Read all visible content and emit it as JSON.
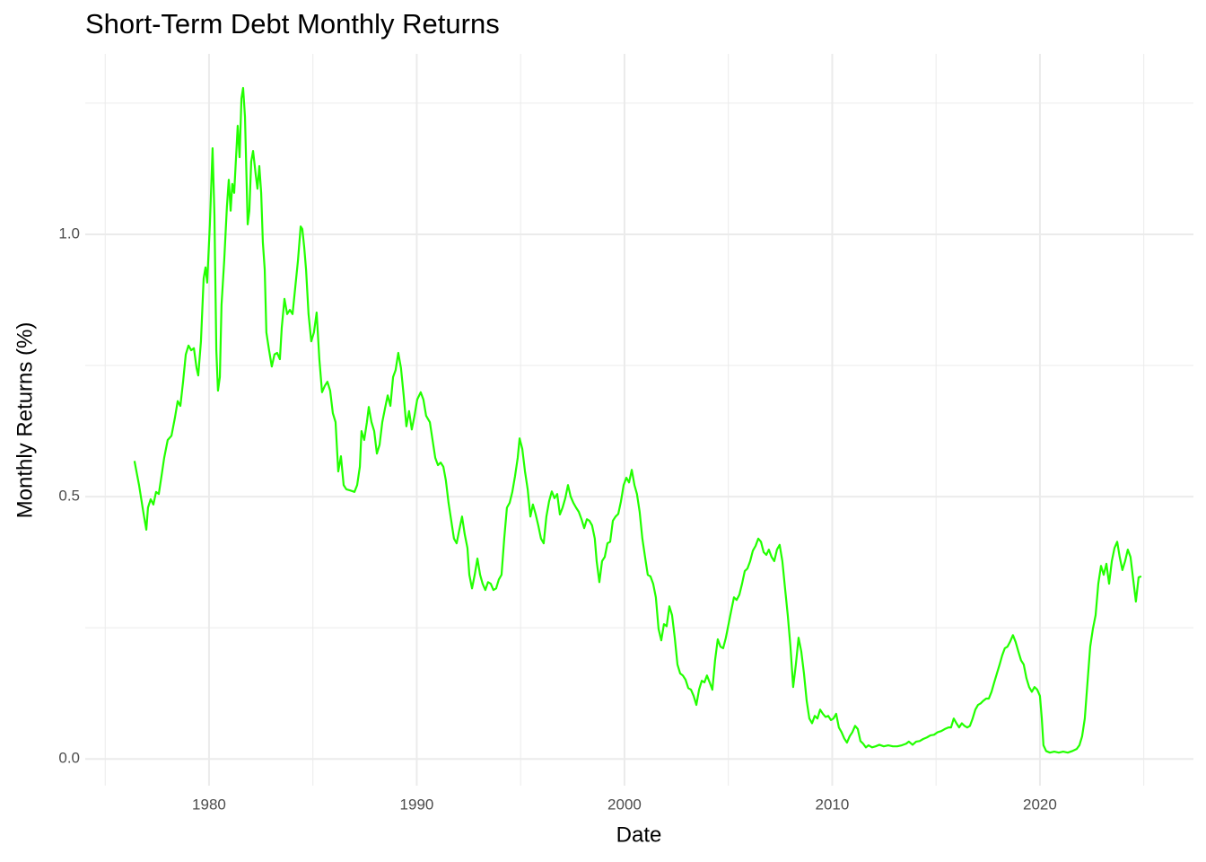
{
  "chart_data": {
    "type": "line",
    "title": "Short-Term Debt Monthly Returns",
    "xlabel": "Date",
    "ylabel": "Monthly Returns (%)",
    "color": "#22ff00",
    "grid": true,
    "xlim": [
      1974.04,
      2027.39
    ],
    "ylim": [
      -0.051,
      1.344
    ],
    "xticks": [
      1980,
      1990,
      2000,
      2010,
      2020
    ],
    "yticks": [
      {
        "value": 0,
        "label": "0.0"
      },
      0.5,
      {
        "value": 1,
        "label": "1.0"
      }
    ],
    "xminor": [
      1975,
      1985,
      1995,
      2005,
      2015,
      2025
    ],
    "yminor": [
      0.25,
      0.75,
      1.25
    ],
    "x": [
      1976.41,
      1976.63,
      1976.85,
      1976.98,
      1977.06,
      1977.19,
      1977.32,
      1977.45,
      1977.58,
      1977.71,
      1977.84,
      1978.01,
      1978.19,
      1978.36,
      1978.49,
      1978.62,
      1978.75,
      1978.88,
      1979.01,
      1979.14,
      1979.27,
      1979.4,
      1979.48,
      1979.61,
      1979.74,
      1979.83,
      1979.91,
      1980.04,
      1980.17,
      1980.26,
      1980.35,
      1980.43,
      1980.52,
      1980.6,
      1980.73,
      1980.86,
      1980.95,
      1981.04,
      1981.12,
      1981.21,
      1981.3,
      1981.38,
      1981.47,
      1981.56,
      1981.64,
      1981.73,
      1981.86,
      1981.94,
      1982.03,
      1982.12,
      1982.25,
      1982.33,
      1982.42,
      1982.51,
      1982.59,
      1982.68,
      1982.76,
      1982.89,
      1983.02,
      1983.15,
      1983.28,
      1983.41,
      1983.5,
      1983.63,
      1983.76,
      1983.89,
      1984.02,
      1984.15,
      1984.28,
      1984.41,
      1984.49,
      1984.58,
      1984.67,
      1984.79,
      1984.92,
      1985.05,
      1985.18,
      1985.31,
      1985.44,
      1985.57,
      1985.7,
      1985.83,
      1985.96,
      1986.09,
      1986.22,
      1986.35,
      1986.48,
      1986.61,
      1986.78,
      1987.0,
      1987.13,
      1987.26,
      1987.34,
      1987.47,
      1987.6,
      1987.69,
      1987.82,
      1987.95,
      1988.08,
      1988.21,
      1988.34,
      1988.47,
      1988.6,
      1988.73,
      1988.86,
      1988.98,
      1989.11,
      1989.24,
      1989.37,
      1989.5,
      1989.63,
      1989.76,
      1989.89,
      1990.02,
      1990.19,
      1990.32,
      1990.45,
      1990.63,
      1990.76,
      1990.89,
      1991.02,
      1991.15,
      1991.28,
      1991.4,
      1991.53,
      1991.66,
      1991.79,
      1991.92,
      1992.05,
      1992.18,
      1992.31,
      1992.44,
      1992.53,
      1992.66,
      1992.79,
      1992.92,
      1993.05,
      1993.17,
      1993.3,
      1993.43,
      1993.56,
      1993.69,
      1993.82,
      1993.95,
      1994.08,
      1994.21,
      1994.34,
      1994.47,
      1994.6,
      1994.73,
      1994.86,
      1994.95,
      1995.08,
      1995.21,
      1995.34,
      1995.47,
      1995.59,
      1995.72,
      1995.85,
      1995.98,
      1996.11,
      1996.24,
      1996.37,
      1996.5,
      1996.63,
      1996.76,
      1996.89,
      1997.02,
      1997.15,
      1997.28,
      1997.41,
      1997.54,
      1997.67,
      1997.8,
      1997.93,
      1998.06,
      1998.19,
      1998.31,
      1998.44,
      1998.57,
      1998.66,
      1998.79,
      1998.92,
      1999.05,
      1999.18,
      1999.31,
      1999.44,
      1999.57,
      1999.7,
      1999.83,
      1999.96,
      2000.09,
      2000.22,
      2000.35,
      2000.48,
      2000.6,
      2000.73,
      2000.86,
      2000.99,
      2001.12,
      2001.25,
      2001.38,
      2001.51,
      2001.64,
      2001.77,
      2001.9,
      2002.03,
      2002.16,
      2002.29,
      2002.42,
      2002.55,
      2002.68,
      2002.81,
      2002.94,
      2003.07,
      2003.2,
      2003.33,
      2003.46,
      2003.59,
      2003.72,
      2003.85,
      2003.97,
      2004.1,
      2004.23,
      2004.36,
      2004.49,
      2004.62,
      2004.75,
      2004.88,
      2005.01,
      2005.14,
      2005.27,
      2005.4,
      2005.53,
      2005.66,
      2005.79,
      2005.92,
      2006.05,
      2006.18,
      2006.31,
      2006.44,
      2006.57,
      2006.7,
      2006.83,
      2006.95,
      2007.08,
      2007.21,
      2007.34,
      2007.47,
      2007.6,
      2007.73,
      2007.86,
      2007.99,
      2008.12,
      2008.25,
      2008.38,
      2008.51,
      2008.64,
      2008.77,
      2008.9,
      2009.03,
      2009.16,
      2009.29,
      2009.42,
      2009.55,
      2009.68,
      2009.81,
      2009.94,
      2010.06,
      2010.19,
      2010.32,
      2010.45,
      2010.58,
      2010.71,
      2010.84,
      2010.97,
      2011.1,
      2011.23,
      2011.36,
      2011.49,
      2011.62,
      2011.75,
      2011.92,
      2012.09,
      2012.27,
      2012.48,
      2012.7,
      2012.92,
      2013.13,
      2013.35,
      2013.56,
      2013.69,
      2013.87,
      2014.04,
      2014.21,
      2014.38,
      2014.56,
      2014.73,
      2014.9,
      2015.08,
      2015.25,
      2015.42,
      2015.6,
      2015.72,
      2015.85,
      2015.98,
      2016.11,
      2016.24,
      2016.37,
      2016.5,
      2016.63,
      2016.76,
      2016.89,
      2017.02,
      2017.15,
      2017.28,
      2017.41,
      2017.54,
      2017.67,
      2017.8,
      2017.93,
      2018.06,
      2018.18,
      2018.31,
      2018.44,
      2018.57,
      2018.7,
      2018.83,
      2018.96,
      2019.09,
      2019.22,
      2019.35,
      2019.48,
      2019.61,
      2019.74,
      2019.87,
      2020.0,
      2020.09,
      2020.17,
      2020.3,
      2020.48,
      2020.69,
      2020.91,
      2021.12,
      2021.34,
      2021.56,
      2021.77,
      2021.9,
      2022.03,
      2022.16,
      2022.29,
      2022.42,
      2022.55,
      2022.68,
      2022.81,
      2022.94,
      2023.07,
      2023.2,
      2023.33,
      2023.46,
      2023.59,
      2023.72,
      2023.84,
      2023.97,
      2024.1,
      2024.23,
      2024.36,
      2024.49,
      2024.62,
      2024.75,
      2024.88
    ],
    "values": [
      0.568,
      0.522,
      0.467,
      0.437,
      0.479,
      0.495,
      0.485,
      0.509,
      0.505,
      0.539,
      0.574,
      0.608,
      0.616,
      0.651,
      0.682,
      0.673,
      0.719,
      0.771,
      0.788,
      0.779,
      0.783,
      0.745,
      0.731,
      0.796,
      0.916,
      0.937,
      0.908,
      1.019,
      1.164,
      1.036,
      0.779,
      0.702,
      0.728,
      0.865,
      0.95,
      1.053,
      1.104,
      1.045,
      1.096,
      1.079,
      1.147,
      1.207,
      1.147,
      1.259,
      1.279,
      1.224,
      1.019,
      1.045,
      1.139,
      1.159,
      1.113,
      1.087,
      1.13,
      1.079,
      0.985,
      0.933,
      0.813,
      0.779,
      0.748,
      0.771,
      0.774,
      0.762,
      0.822,
      0.877,
      0.848,
      0.856,
      0.848,
      0.899,
      0.95,
      1.015,
      1.01,
      0.976,
      0.933,
      0.848,
      0.796,
      0.813,
      0.851,
      0.762,
      0.699,
      0.711,
      0.719,
      0.702,
      0.659,
      0.642,
      0.548,
      0.577,
      0.522,
      0.514,
      0.512,
      0.509,
      0.522,
      0.557,
      0.625,
      0.608,
      0.642,
      0.671,
      0.642,
      0.625,
      0.582,
      0.599,
      0.642,
      0.668,
      0.693,
      0.673,
      0.728,
      0.741,
      0.774,
      0.745,
      0.693,
      0.634,
      0.663,
      0.628,
      0.654,
      0.685,
      0.699,
      0.685,
      0.654,
      0.642,
      0.608,
      0.574,
      0.56,
      0.565,
      0.557,
      0.531,
      0.488,
      0.454,
      0.42,
      0.411,
      0.437,
      0.462,
      0.428,
      0.402,
      0.351,
      0.325,
      0.351,
      0.382,
      0.351,
      0.334,
      0.322,
      0.337,
      0.334,
      0.322,
      0.325,
      0.342,
      0.351,
      0.42,
      0.479,
      0.488,
      0.509,
      0.539,
      0.574,
      0.611,
      0.591,
      0.548,
      0.514,
      0.462,
      0.485,
      0.467,
      0.445,
      0.42,
      0.411,
      0.462,
      0.491,
      0.51,
      0.497,
      0.505,
      0.466,
      0.479,
      0.497,
      0.522,
      0.5,
      0.488,
      0.479,
      0.471,
      0.457,
      0.44,
      0.457,
      0.454,
      0.445,
      0.42,
      0.377,
      0.337,
      0.377,
      0.385,
      0.411,
      0.414,
      0.454,
      0.462,
      0.467,
      0.491,
      0.522,
      0.536,
      0.527,
      0.551,
      0.522,
      0.505,
      0.471,
      0.42,
      0.385,
      0.351,
      0.348,
      0.334,
      0.308,
      0.248,
      0.226,
      0.257,
      0.253,
      0.291,
      0.274,
      0.231,
      0.18,
      0.163,
      0.159,
      0.151,
      0.135,
      0.132,
      0.12,
      0.103,
      0.132,
      0.149,
      0.146,
      0.159,
      0.146,
      0.132,
      0.188,
      0.228,
      0.214,
      0.211,
      0.231,
      0.257,
      0.283,
      0.308,
      0.303,
      0.313,
      0.334,
      0.358,
      0.363,
      0.377,
      0.397,
      0.406,
      0.42,
      0.414,
      0.394,
      0.389,
      0.399,
      0.385,
      0.377,
      0.399,
      0.408,
      0.377,
      0.325,
      0.274,
      0.214,
      0.137,
      0.18,
      0.231,
      0.205,
      0.163,
      0.111,
      0.077,
      0.068,
      0.082,
      0.077,
      0.094,
      0.086,
      0.08,
      0.082,
      0.074,
      0.077,
      0.086,
      0.06,
      0.051,
      0.039,
      0.031,
      0.043,
      0.051,
      0.063,
      0.057,
      0.034,
      0.029,
      0.022,
      0.026,
      0.022,
      0.024,
      0.027,
      0.024,
      0.026,
      0.024,
      0.024,
      0.026,
      0.029,
      0.033,
      0.027,
      0.033,
      0.034,
      0.038,
      0.041,
      0.045,
      0.046,
      0.051,
      0.053,
      0.057,
      0.06,
      0.06,
      0.077,
      0.068,
      0.06,
      0.068,
      0.063,
      0.06,
      0.063,
      0.077,
      0.094,
      0.103,
      0.106,
      0.111,
      0.115,
      0.115,
      0.128,
      0.146,
      0.163,
      0.18,
      0.197,
      0.211,
      0.214,
      0.224,
      0.236,
      0.223,
      0.205,
      0.188,
      0.18,
      0.154,
      0.137,
      0.128,
      0.137,
      0.132,
      0.12,
      0.077,
      0.026,
      0.015,
      0.012,
      0.014,
      0.012,
      0.014,
      0.012,
      0.015,
      0.019,
      0.026,
      0.043,
      0.077,
      0.146,
      0.214,
      0.248,
      0.274,
      0.334,
      0.368,
      0.351,
      0.372,
      0.334,
      0.377,
      0.402,
      0.414,
      0.385,
      0.36,
      0.377,
      0.399,
      0.385,
      0.342,
      0.3,
      0.346,
      0.348
    ]
  }
}
